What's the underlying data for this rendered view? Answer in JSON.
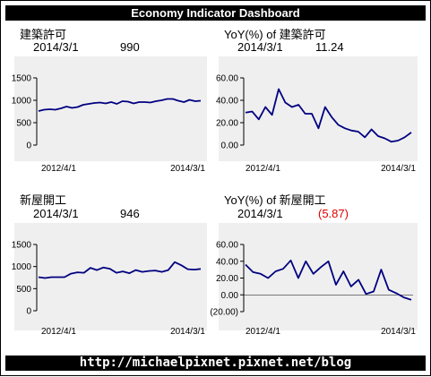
{
  "header": {
    "title": "Economy Indicator Dashboard"
  },
  "footer": {
    "url": "http://michaelpixnet.pixnet.net/blog"
  },
  "colors": {
    "line": "#000080",
    "negative": "#e00000",
    "plot_bg": "#efefef"
  },
  "chart_data": [
    {
      "type": "line",
      "title": "建築許可",
      "latest_date": "2014/3/1",
      "latest_value": "990",
      "x_start": "2012/4/1",
      "x_end": "2014/3/1",
      "ylim": [
        0,
        1500
      ],
      "yticks": [
        "0",
        "500",
        "1000",
        "1500"
      ],
      "yticks_values": [
        0,
        500,
        1000,
        1500
      ],
      "values": [
        760,
        790,
        800,
        790,
        820,
        860,
        830,
        850,
        900,
        920,
        940,
        950,
        930,
        960,
        920,
        980,
        970,
        930,
        960,
        960,
        950,
        980,
        1000,
        1030,
        1030,
        990,
        960,
        1010,
        980,
        990
      ]
    },
    {
      "type": "line",
      "title": "YoY(%) of 建築許可",
      "latest_date": "2014/3/1",
      "latest_value": "11.24",
      "x_start": "2012/4/1",
      "x_end": "2014/3/1",
      "ylim": [
        0,
        60
      ],
      "yticks": [
        "0.00",
        "20.00",
        "40.00",
        "60.00"
      ],
      "yticks_values": [
        0,
        20,
        40,
        60
      ],
      "values": [
        29,
        30,
        23,
        34,
        27,
        50,
        38,
        34,
        36,
        28,
        28,
        15,
        34,
        25,
        18,
        15,
        13,
        12,
        7,
        14,
        8,
        6,
        3,
        4,
        7,
        11.24
      ]
    },
    {
      "type": "line",
      "title": "新屋開工",
      "latest_date": "2014/3/1",
      "latest_value": "946",
      "x_start": "2012/4/1",
      "x_end": "2014/3/1",
      "ylim": [
        0,
        1500
      ],
      "yticks": [
        "0",
        "500",
        "1000",
        "1500"
      ],
      "yticks_values": [
        0,
        500,
        1000,
        1500
      ],
      "values": [
        760,
        740,
        760,
        760,
        760,
        840,
        870,
        860,
        970,
        920,
        980,
        950,
        860,
        890,
        850,
        920,
        880,
        900,
        910,
        880,
        920,
        1100,
        1030,
        940,
        930,
        946
      ]
    },
    {
      "type": "line",
      "title": "YoY(%) of 新屋開工",
      "latest_date": "2014/3/1",
      "latest_value": "(5.87)",
      "x_start": "2012/4/1",
      "x_end": "2014/3/1",
      "ylim": [
        -20,
        60
      ],
      "yticks": [
        "(20.00)",
        "0.00",
        "20.00",
        "40.00",
        "60.00"
      ],
      "yticks_values": [
        -20,
        0,
        20,
        40,
        60
      ],
      "values": [
        36,
        27,
        25,
        20,
        28,
        31,
        41,
        20,
        40,
        25,
        33,
        40,
        12,
        28,
        10,
        18,
        1,
        4,
        30,
        6,
        2,
        -3,
        -5.87
      ]
    }
  ]
}
